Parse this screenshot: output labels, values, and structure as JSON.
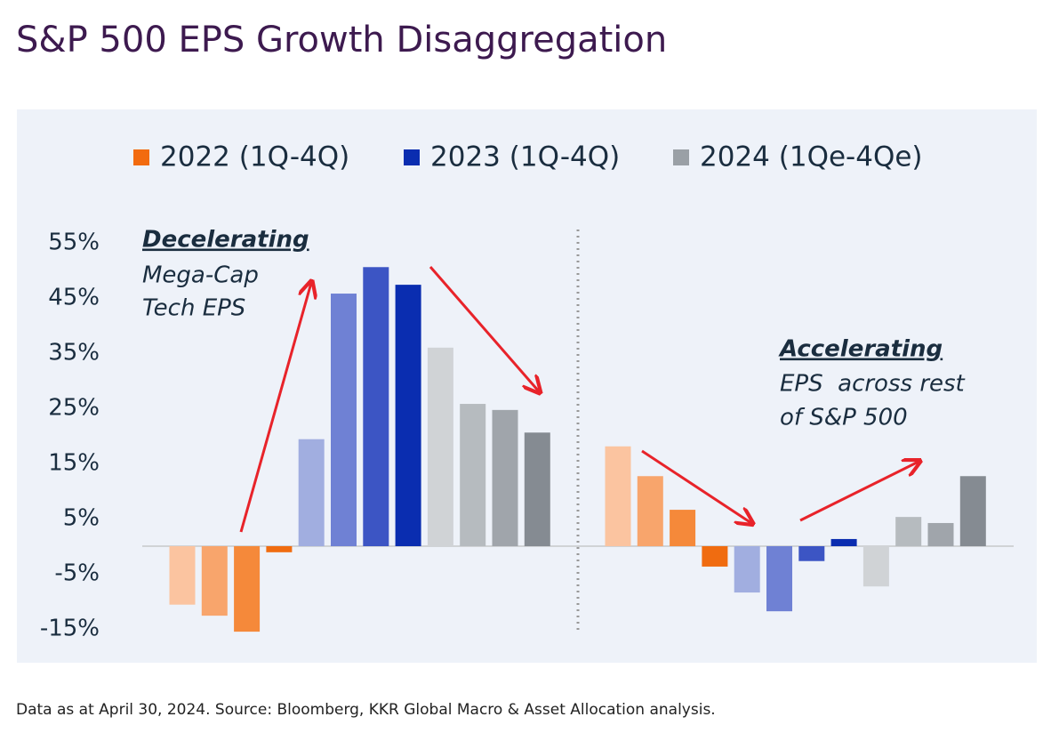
{
  "chart_data": {
    "type": "bar",
    "title": "S&P 500 EPS Growth Disaggregation",
    "footnote": "Data as at April 30, 2024. Source: Bloomberg, KKR Global Macro & Asset Allocation analysis.",
    "categories": [
      null,
      null,
      null,
      null,
      null,
      null,
      null,
      null
    ],
    "series": [
      {
        "name": "2022 (1Q-4Q)",
        "color": "#f26b0f",
        "colors": [
          "#fbc4a0",
          "#f8a56c",
          "#f5893a",
          "#f06c10"
        ],
        "values": [
          -10.6,
          -12.6,
          -15.5,
          -1.1,
          18.1,
          12.7,
          6.6,
          -3.7
        ]
      },
      {
        "name": "2023 (1Q-4Q)",
        "color": "#0a2db0",
        "colors": [
          "#a1aee0",
          "#6f81d4",
          "#3c55c4",
          "#0a2db0"
        ],
        "values": [
          19.4,
          45.8,
          50.6,
          47.4,
          -8.4,
          -11.8,
          -2.7,
          1.3
        ]
      },
      {
        "name": "2024 (1Qe-4Qe)",
        "color": "#9aa0a6",
        "colors": [
          "#d0d3d6",
          "#b6bbbf",
          "#a0a5ab",
          "#858b92"
        ],
        "values": [
          36.0,
          25.8,
          24.7,
          20.6,
          -7.3,
          5.3,
          4.2,
          12.7
        ]
      }
    ],
    "ylim": [
      -17,
      59
    ],
    "yticks": [
      {
        "value": -15,
        "label": "-15%"
      },
      {
        "value": -5,
        "label": "-5%"
      },
      {
        "value": 5,
        "label": "5%"
      },
      {
        "value": 15,
        "label": "15%"
      },
      {
        "value": 25,
        "label": "25%"
      },
      {
        "value": 35,
        "label": "35%"
      },
      {
        "value": 45,
        "label": "45%"
      },
      {
        "value": 55,
        "label": "55%"
      }
    ],
    "grid": false,
    "annotations": [
      {
        "heading": "Decelerating",
        "lines": [
          "Mega-Cap",
          "Tech EPS"
        ]
      },
      {
        "heading": "Accelerating",
        "lines": [
          "EPS  across rest",
          "of S&P 500"
        ]
      }
    ]
  }
}
